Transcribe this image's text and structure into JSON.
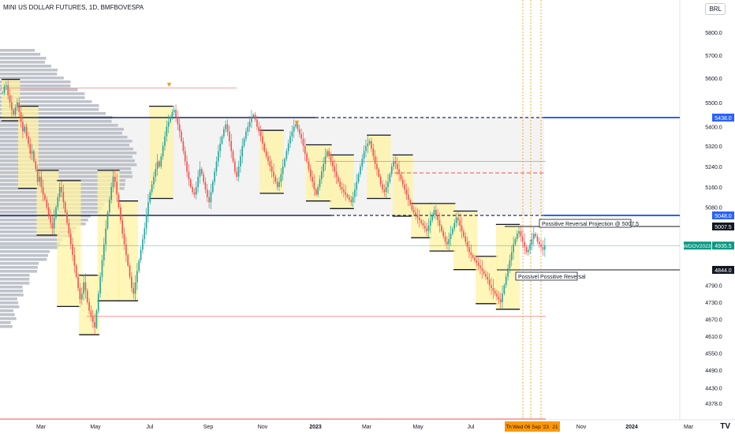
{
  "header": {
    "title": "MINI US DOLLAR FUTURES, 1D, BMFBOVESPA",
    "currency": "BRL"
  },
  "branding": {
    "logo_text": "TV"
  },
  "colors": {
    "up": "#26a69a",
    "down": "#ef5350",
    "box_fill": "#fff3a3",
    "profile": "#b9bcc4",
    "level_blue": "#2962ff",
    "accent_green": "#089981",
    "highlight": "#ff9800"
  },
  "chart_data": {
    "type": "candlestick",
    "title": "MINI US DOLLAR FUTURES",
    "symbol": "WDOV2023",
    "currency": "BRL",
    "y_axis": {
      "ticks": [
        4378.0,
        4430.0,
        4490.0,
        4550.0,
        4610.0,
        4670.0,
        4730.0,
        4790.0,
        4844.0,
        4935.5,
        5007.5,
        5048.0,
        5080.0,
        5160.0,
        5240.0,
        5320.0,
        5400.0,
        5438.0,
        5500.0,
        5600.0,
        5700.0,
        5800.0
      ],
      "regular_ticks": [
        4378.0,
        4430.0,
        4490.0,
        4550.0,
        4610.0,
        4670.0,
        4730.0,
        4790.0,
        5080.0,
        5160.0,
        5240.0,
        5320.0,
        5400.0,
        5500.0,
        5600.0,
        5700.0,
        5800.0
      ],
      "ylim": [
        4370,
        5870
      ]
    },
    "x_axis": {
      "labels": [
        "Mar",
        "May",
        "Jul",
        "Sep",
        "Nov",
        "2023",
        "Mar",
        "May",
        "Jul",
        "Nov",
        "2024",
        "Mar"
      ],
      "highlight_labels": [
        "Th",
        "Wed 06 Sep '23",
        "21"
      ]
    },
    "price_labels": [
      {
        "value": 5438.0,
        "text": "5438.0",
        "style": "blue"
      },
      {
        "value": 5048.0,
        "text": "5048.0",
        "style": "blue"
      },
      {
        "value": 5007.5,
        "text": "5007.5",
        "style": "black"
      },
      {
        "value": 4935.5,
        "text": "4935.5",
        "style": "green"
      },
      {
        "value": 4844.0,
        "text": "4844.0",
        "style": "black"
      }
    ],
    "symbol_label": "WDOV2023",
    "annotations": [
      {
        "text": "Possitive Reversal Projection @ 5007.5"
      },
      {
        "text": "Possivel Possitive Reversal"
      }
    ],
    "levels": [
      {
        "value": 5438.0,
        "color": "#1a2a6c"
      },
      {
        "value": 5048.0,
        "color": "#1a2a6c"
      },
      {
        "value": 5007.5,
        "color": "#131722"
      },
      {
        "value": 4844.0,
        "color": "#131722"
      },
      {
        "value": 5260.0,
        "color": "#ef5350"
      },
      {
        "value": 5215.0,
        "color": "#ef5350"
      },
      {
        "value": 4680.0,
        "color": "#ef5350"
      },
      {
        "value": 4935.5,
        "color": "#089981"
      }
    ],
    "prices": [
      5540,
      5565,
      5570,
      5530,
      5500,
      5470,
      5450,
      5480,
      5500,
      5460,
      5420,
      5380,
      5400,
      5360,
      5330,
      5290,
      5300,
      5260,
      5230,
      5180,
      5200,
      5160,
      5130,
      5110,
      5080,
      5050,
      5020,
      5000,
      5040,
      5080,
      5120,
      5160,
      5140,
      5100,
      5060,
      5020,
      4980,
      4940,
      4900,
      4860,
      4820,
      4780,
      4740,
      4760,
      4800,
      4770,
      4730,
      4700,
      4680,
      4660,
      4640,
      4700,
      4760,
      4820,
      4880,
      4940,
      5000,
      5060,
      5110,
      5160,
      5200,
      5180,
      5130,
      5080,
      5030,
      4980,
      4940,
      4900,
      4860,
      4820,
      4780,
      4760,
      4800,
      4840,
      4880,
      4920,
      4960,
      5000,
      5050,
      5100,
      5140,
      5170,
      5200,
      5230,
      5260,
      5240,
      5280,
      5320,
      5360,
      5400,
      5420,
      5440,
      5460,
      5470,
      5440,
      5410,
      5380,
      5340,
      5300,
      5260,
      5220,
      5190,
      5160,
      5140,
      5130,
      5160,
      5200,
      5230,
      5210,
      5180,
      5150,
      5120,
      5100,
      5140,
      5180,
      5220,
      5260,
      5300,
      5330,
      5360,
      5390,
      5410,
      5380,
      5340,
      5300,
      5260,
      5220,
      5200,
      5240,
      5280,
      5320,
      5350,
      5380,
      5400,
      5420,
      5440,
      5450,
      5430,
      5400,
      5380,
      5360,
      5330,
      5300,
      5280,
      5260,
      5240,
      5220,
      5200,
      5180,
      5160,
      5180,
      5210,
      5240,
      5270,
      5300,
      5330,
      5360,
      5380,
      5400,
      5410,
      5390,
      5370,
      5350,
      5320,
      5290,
      5260,
      5230,
      5200,
      5180,
      5150,
      5130,
      5160,
      5190,
      5220,
      5250,
      5280,
      5300,
      5280,
      5260,
      5240,
      5220,
      5200,
      5180,
      5160,
      5150,
      5140,
      5130,
      5120,
      5110,
      5100,
      5120,
      5150,
      5180,
      5210,
      5240,
      5270,
      5300,
      5320,
      5330,
      5340,
      5310,
      5280,
      5250,
      5230,
      5200,
      5170,
      5150,
      5140,
      5160,
      5180,
      5210,
      5240,
      5260,
      5250,
      5230,
      5210,
      5190,
      5170,
      5150,
      5130,
      5110,
      5090,
      5070,
      5060,
      5050,
      5040,
      5030,
      5020,
      5010,
      5000,
      4990,
      5010,
      5030,
      5050,
      5070,
      5050,
      5030,
      5010,
      4990,
      4970,
      4950,
      4940,
      4960,
      4980,
      5000,
      5020,
      5040,
      5030,
      5010,
      4990,
      4970,
      4950,
      4930,
      4910,
      4900,
      4890,
      4880,
      4870,
      4860,
      4850,
      4840,
      4830,
      4820,
      4810,
      4790,
      4780,
      4770,
      4760,
      4750,
      4740,
      4730,
      4760,
      4790,
      4820,
      4850,
      4880,
      4910,
      4940,
      4960,
      4980,
      4990,
      4970,
      4950,
      4930,
      4910,
      4920,
      4940,
      4960,
      4980,
      4970,
      4950,
      4940,
      4930,
      4920,
      4935
    ]
  }
}
